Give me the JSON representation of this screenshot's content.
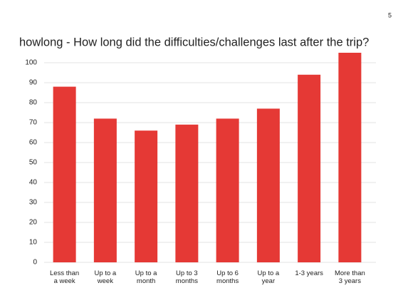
{
  "page_number": "5",
  "chart_data": {
    "type": "bar",
    "title": "howlong - How long did the difficulties/challenges last after the trip?",
    "categories": [
      "Less than a week",
      "Up to a week",
      "Up to a month",
      "Up to 3 months",
      "Up to 6 months",
      "Up to a year",
      "1-3 years",
      "More than 3 years"
    ],
    "values": [
      88,
      72,
      66,
      69,
      72,
      77,
      94,
      105
    ],
    "color": "#e53935",
    "ylim": [
      0,
      105
    ],
    "yticks": [
      0,
      10,
      20,
      30,
      40,
      50,
      60,
      70,
      80,
      90,
      100
    ],
    "grid": true
  }
}
